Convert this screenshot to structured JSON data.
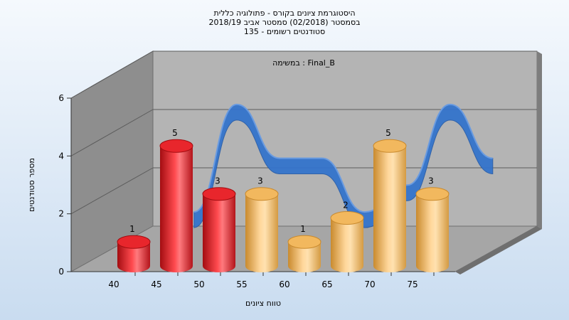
{
  "chart_data": {
    "type": "bar",
    "title_lines": [
      "היסטוגרמת ציונים בקורס - פתולוגיה כללית",
      "בסמסטר  (02/2018)  סמסטר אביב 2018/19",
      "סטודנטים רשומים - 135"
    ],
    "subtitle": "במשימה : Final_B",
    "xlabel": "טווח ציונים",
    "ylabel": "מספר סטודנטים",
    "categories": [
      "40",
      "45",
      "50",
      "55",
      "60",
      "65",
      "70",
      "75"
    ],
    "values": [
      1,
      5,
      3,
      3,
      1,
      2,
      5,
      3
    ],
    "bar_colors": [
      "red",
      "red",
      "red",
      "gold",
      "gold",
      "gold",
      "gold",
      "gold"
    ],
    "yticks": [
      "0",
      "2",
      "4",
      "6"
    ],
    "ylim": [
      0,
      6
    ],
    "grid": true,
    "trend_ribbon": true
  },
  "colors": {
    "red": "#e8262c",
    "red_dark": "#a30d11",
    "gold": "#f2b85e",
    "gold_dark": "#c98a2e",
    "ribbon": "#3474cc",
    "wall": "#b4b4b4",
    "side_wall": "#8e8e8e",
    "floor": "#a6a6a6"
  }
}
